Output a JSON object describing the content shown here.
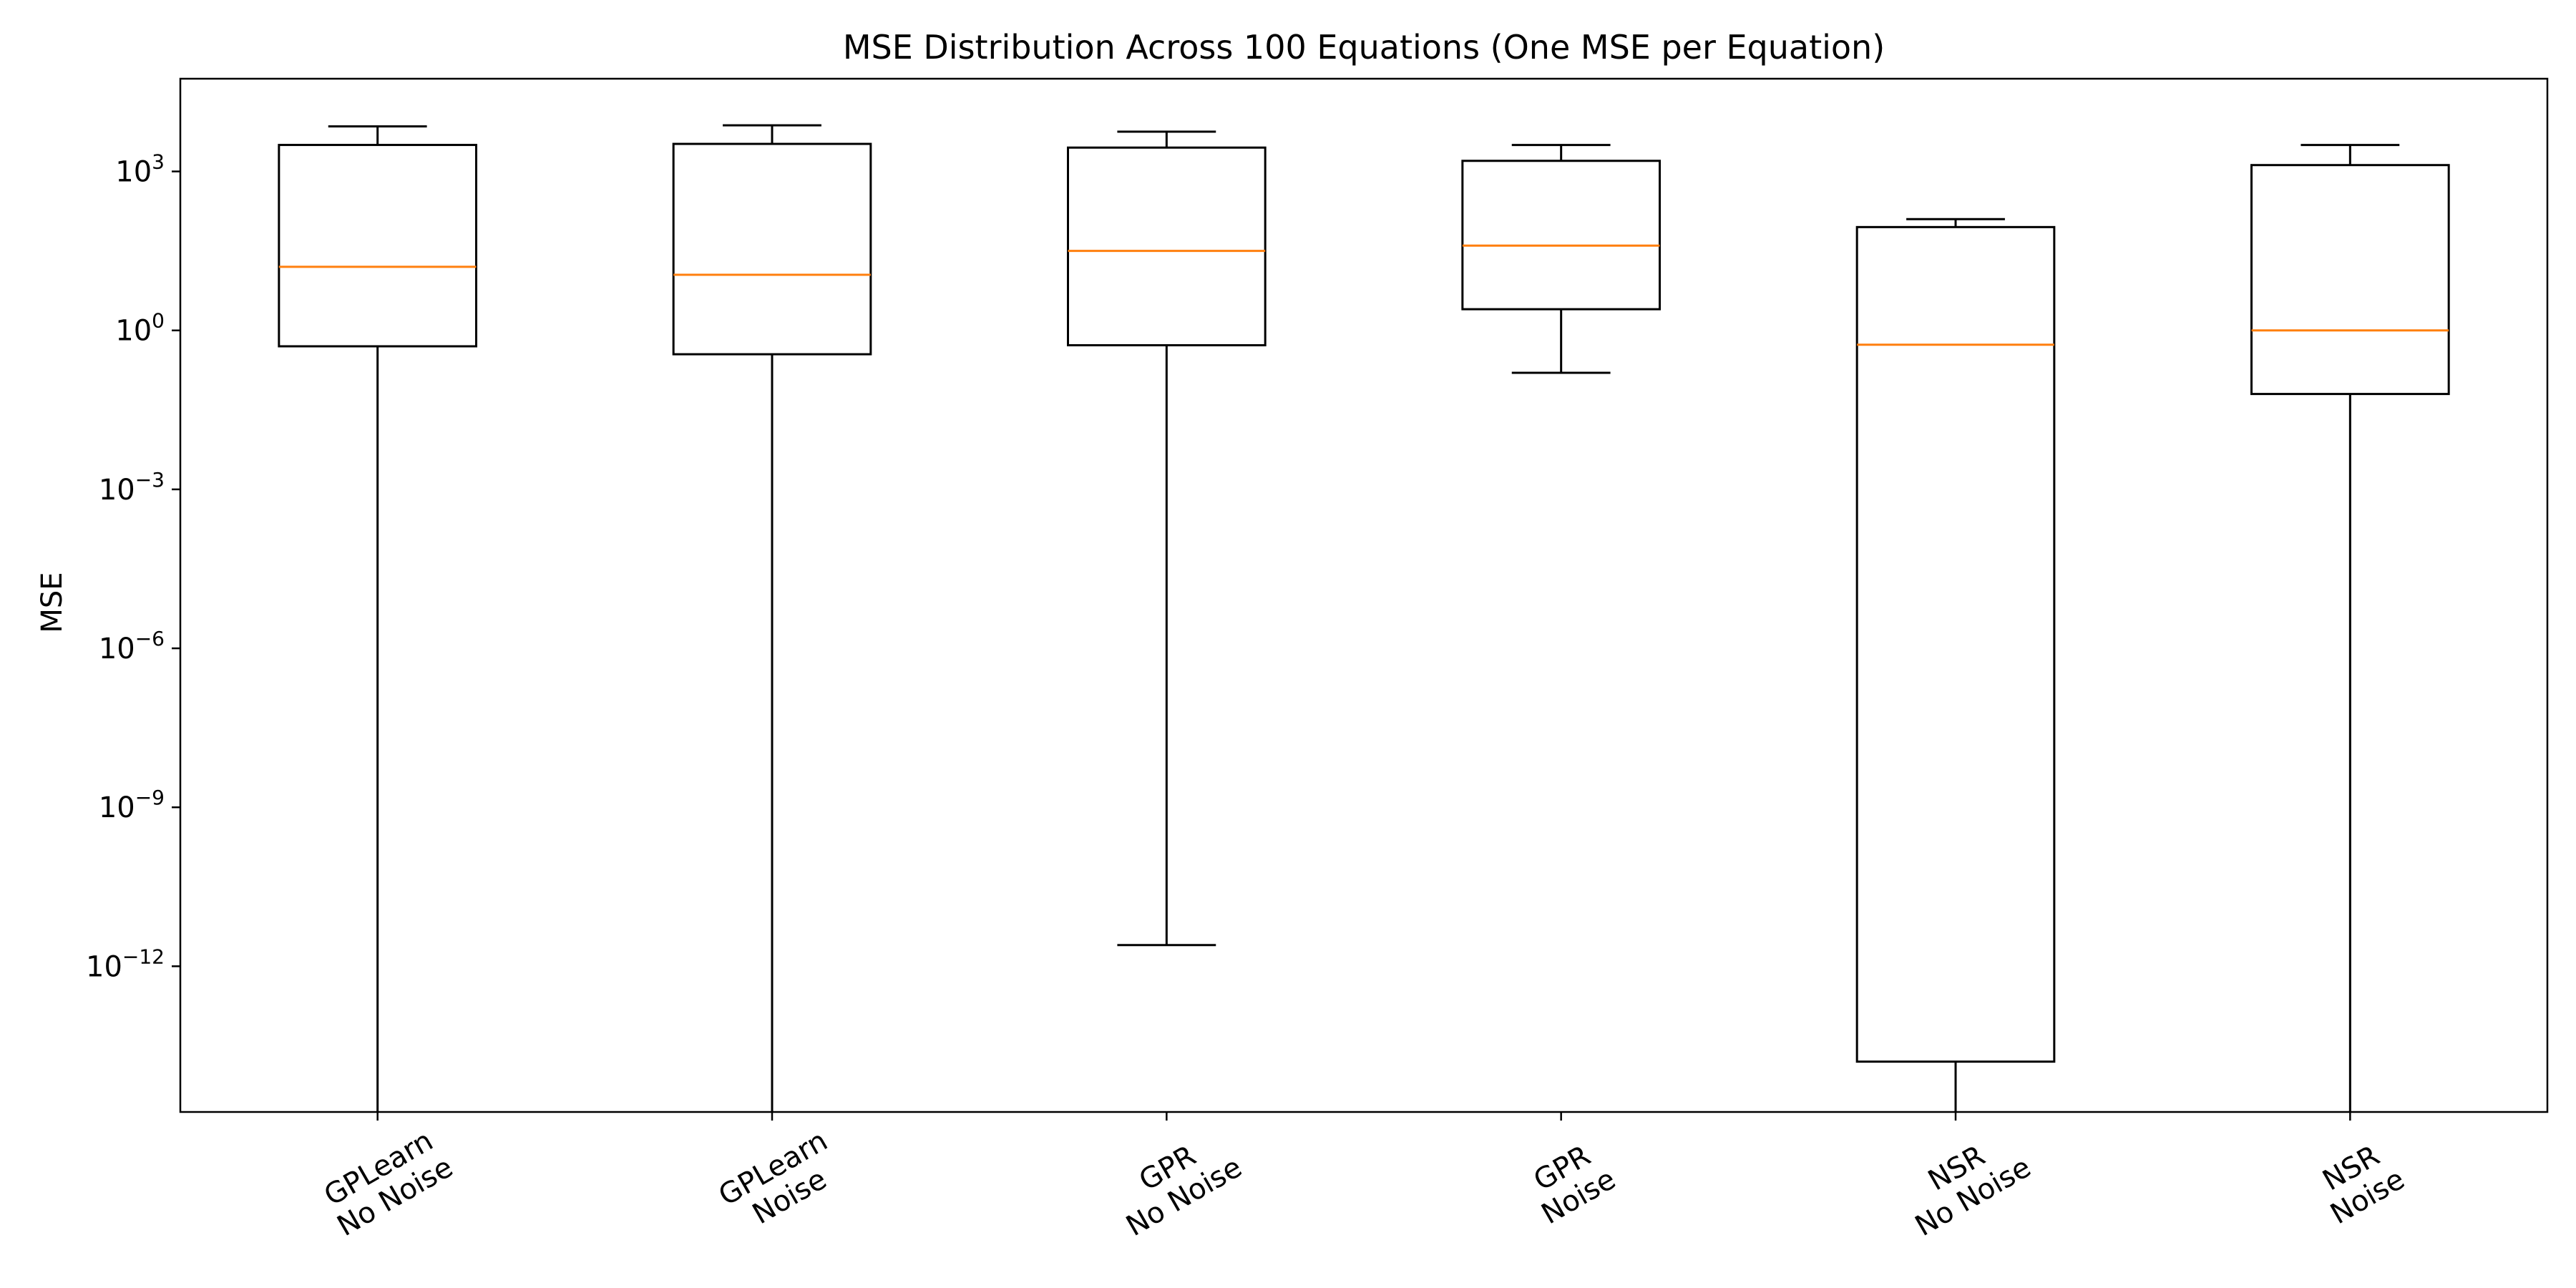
{
  "chart_data": {
    "type": "box",
    "title": "MSE Distribution Across 100 Equations (One MSE per Equation)",
    "xlabel": "",
    "ylabel": "MSE",
    "yscale": "log",
    "ylim_exp": [
      -14.75,
      4.75
    ],
    "yticks": [
      {
        "base": "10",
        "exp": "3",
        "value": 3
      },
      {
        "base": "10",
        "exp": "0",
        "value": 0
      },
      {
        "base": "10",
        "exp": "−3",
        "value": -3
      },
      {
        "base": "10",
        "exp": "−6",
        "value": -6
      },
      {
        "base": "10",
        "exp": "−9",
        "value": -9
      },
      {
        "base": "10",
        "exp": "−12",
        "value": -12
      }
    ],
    "grid": false,
    "box_color": "#000000",
    "median_color": "#ff7f0e",
    "categories": [
      {
        "line1": "GPLearn",
        "line2": "No Noise"
      },
      {
        "line1": "GPLearn",
        "line2": "Noise"
      },
      {
        "line1": "GPR",
        "line2": "No Noise"
      },
      {
        "line1": "GPR",
        "line2": "Noise"
      },
      {
        "line1": "NSR",
        "line2": "No Noise"
      },
      {
        "line1": "NSR",
        "line2": "Noise"
      }
    ],
    "boxes_log10": [
      {
        "whisker_low": -16,
        "q1": -0.3,
        "median": 1.2,
        "q3": 3.5,
        "whisker_high": 3.85
      },
      {
        "whisker_low": -16,
        "q1": -0.45,
        "median": 1.05,
        "q3": 3.52,
        "whisker_high": 3.87
      },
      {
        "whisker_low": -11.6,
        "q1": -0.28,
        "median": 1.5,
        "q3": 3.45,
        "whisker_high": 3.75
      },
      {
        "whisker_low": -0.8,
        "q1": 0.4,
        "median": 1.6,
        "q3": 3.2,
        "whisker_high": 3.5
      },
      {
        "whisker_low": -16,
        "q1": -13.8,
        "median": -0.27,
        "q3": 1.95,
        "whisker_high": 2.1
      },
      {
        "whisker_low": -16,
        "q1": -1.2,
        "median": 0.0,
        "q3": 3.12,
        "whisker_high": 3.5
      }
    ]
  }
}
